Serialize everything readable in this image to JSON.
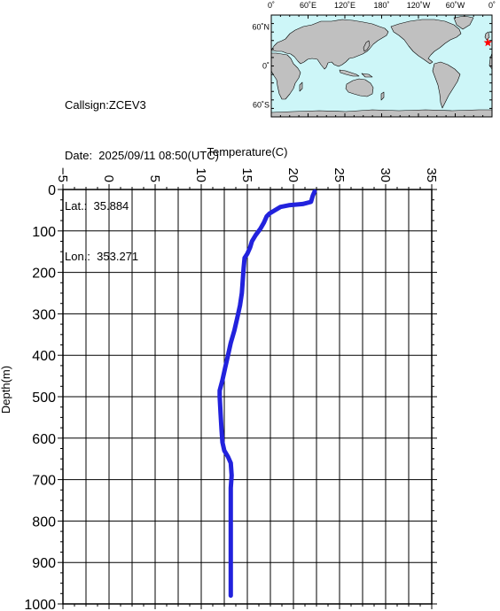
{
  "info": {
    "callsign": "Callsign:ZCEV3",
    "date": "Date:  2025/09/11 08:50(UTC)",
    "lat": "Lat.:  35.884",
    "lon": "Lon.:  353.271"
  },
  "map": {
    "lon_labels": [
      "0˚",
      "60˚E",
      "120˚E",
      "180˚",
      "120˚W",
      "60˚W",
      "0˚"
    ],
    "lat_labels": [
      "60˚N",
      "0˚",
      "60˚S"
    ],
    "ocean_color": "#cdf6f8",
    "land_color": "#c0c0c0",
    "marker": {
      "lat": 35.884,
      "lon": 353.271,
      "color": "#ff0000"
    }
  },
  "chart_data": {
    "type": "line",
    "title": "",
    "xlabel": "Temperature(C)",
    "ylabel": "Depth(m)",
    "xlim": [
      -5,
      35
    ],
    "ylim": [
      0,
      1000
    ],
    "y_inverted": true,
    "x_ticks": [
      -5,
      0,
      5,
      10,
      15,
      20,
      25,
      30,
      35
    ],
    "y_ticks": [
      0,
      100,
      200,
      300,
      400,
      500,
      600,
      700,
      800,
      900,
      1000
    ],
    "grid": true,
    "line_color": "#2222dd",
    "points": [
      [
        22.3,
        5
      ],
      [
        22.1,
        15
      ],
      [
        21.9,
        30
      ],
      [
        21.0,
        35
      ],
      [
        19.5,
        38
      ],
      [
        18.6,
        42
      ],
      [
        18.0,
        50
      ],
      [
        17.4,
        58
      ],
      [
        17.1,
        65
      ],
      [
        16.8,
        80
      ],
      [
        16.4,
        95
      ],
      [
        15.9,
        110
      ],
      [
        15.5,
        125
      ],
      [
        15.3,
        140
      ],
      [
        15.0,
        155
      ],
      [
        14.7,
        165
      ],
      [
        14.6,
        190
      ],
      [
        14.5,
        220
      ],
      [
        14.4,
        250
      ],
      [
        14.2,
        280
      ],
      [
        13.9,
        310
      ],
      [
        13.6,
        340
      ],
      [
        13.2,
        370
      ],
      [
        12.9,
        400
      ],
      [
        12.6,
        430
      ],
      [
        12.3,
        460
      ],
      [
        12.0,
        485
      ],
      [
        12.0,
        500
      ],
      [
        12.1,
        540
      ],
      [
        12.2,
        580
      ],
      [
        12.3,
        610
      ],
      [
        12.5,
        630
      ],
      [
        12.9,
        645
      ],
      [
        13.2,
        660
      ],
      [
        13.3,
        690
      ],
      [
        13.2,
        720
      ],
      [
        13.2,
        800
      ],
      [
        13.2,
        900
      ],
      [
        13.2,
        980
      ]
    ]
  }
}
